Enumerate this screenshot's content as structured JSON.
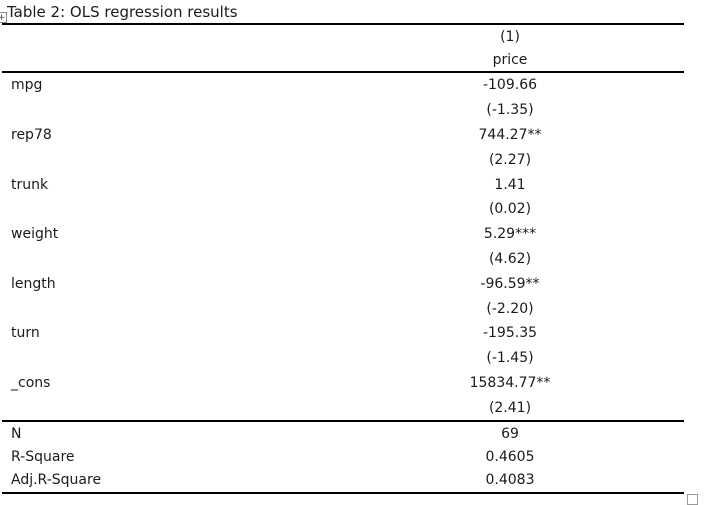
{
  "title": "Table 2: OLS regression results",
  "regression_table": {
    "column_header": {
      "model_no": "(1)",
      "dependent_variable": "price"
    },
    "coefficient_rows": [
      {
        "variable": "mpg",
        "coefficient": "-109.66",
        "t_stat": "(-1.35)"
      },
      {
        "variable": "rep78",
        "coefficient": "744.27**",
        "t_stat": "(2.27)"
      },
      {
        "variable": "trunk",
        "coefficient": "1.41",
        "t_stat": "(0.02)"
      },
      {
        "variable": "weight",
        "coefficient": "5.29***",
        "t_stat": "(4.62)"
      },
      {
        "variable": "length",
        "coefficient": "-96.59**",
        "t_stat": "(-2.20)"
      },
      {
        "variable": "turn",
        "coefficient": "-195.35",
        "t_stat": "(-1.45)"
      },
      {
        "variable": "_cons",
        "coefficient": "15834.77**",
        "t_stat": "(2.41)"
      }
    ],
    "summary_rows": [
      {
        "label": "N",
        "value": "69"
      },
      {
        "label": "R-Square",
        "value": "0.4605"
      },
      {
        "label": "Adj.R-Square",
        "value": "0.4083"
      }
    ]
  },
  "icons": {
    "table_move_handle_glyph": "+"
  },
  "colors": {
    "text": "#1b1b1b",
    "rule": "#000000",
    "handle_border": "#9a9a9a",
    "background": "#ffffff"
  }
}
